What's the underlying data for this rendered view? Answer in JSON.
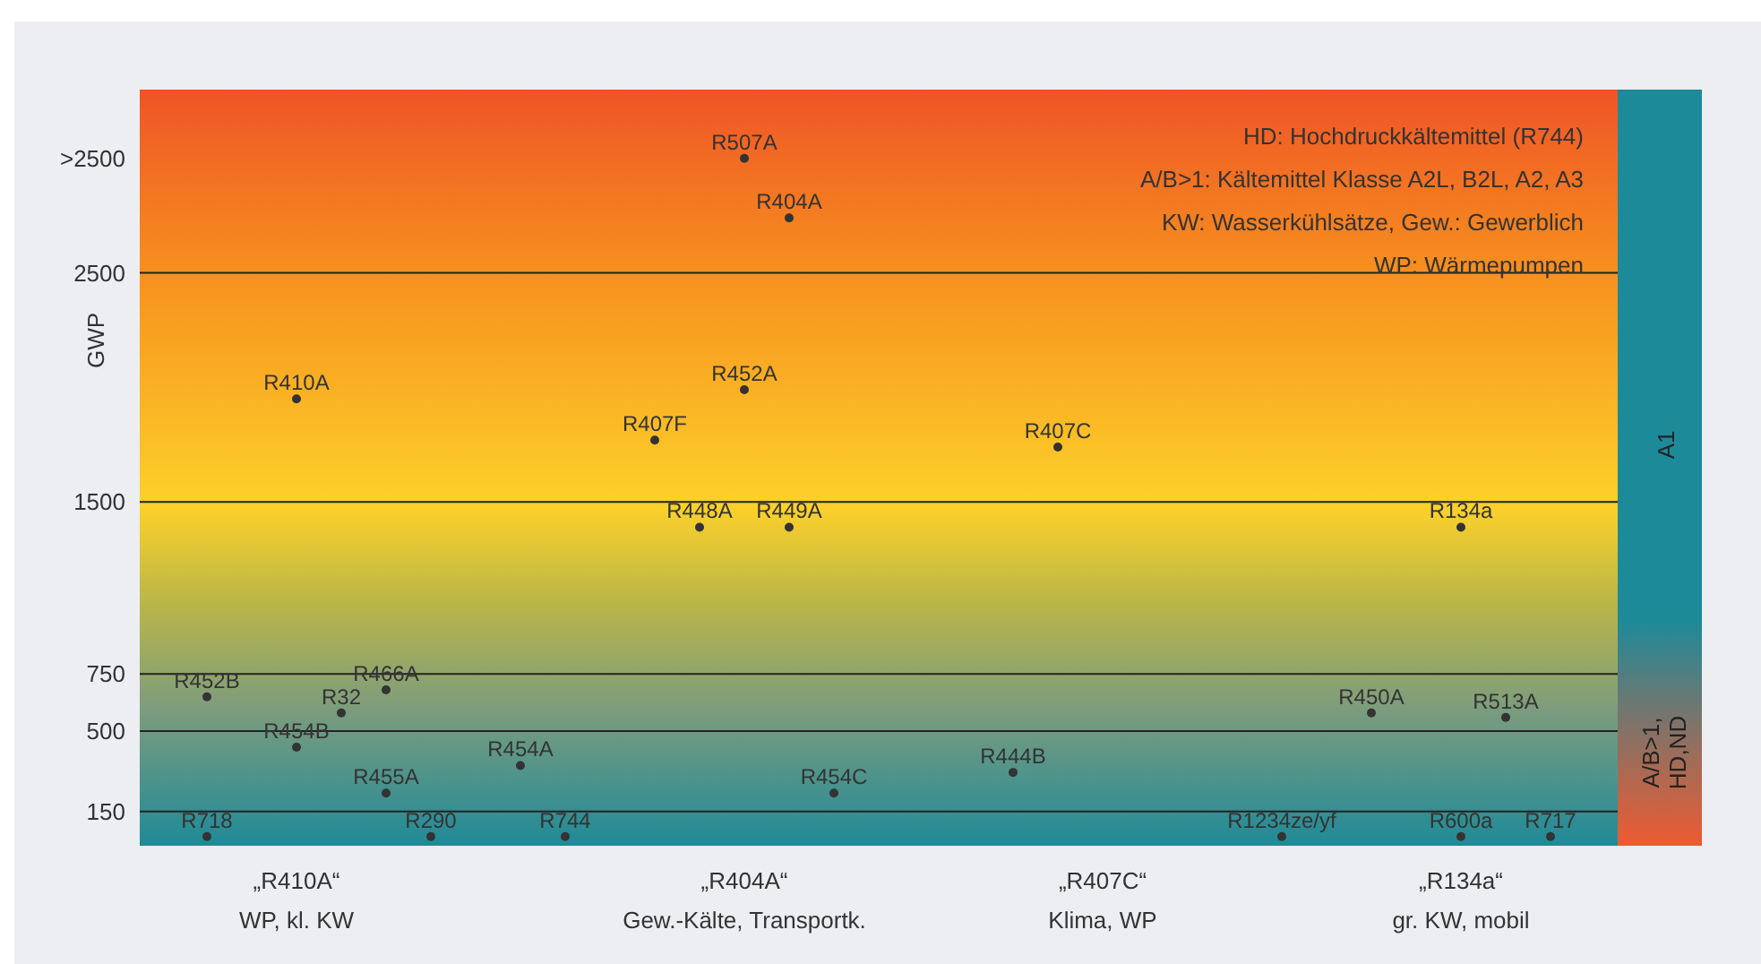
{
  "chart_data": {
    "type": "scatter",
    "ylabel": "GWP",
    "marker": "circle",
    "grid": "y",
    "categories": [
      null,
      null,
      null,
      "„R410A“\nWP, kl. KW",
      null,
      null,
      null,
      null,
      null,
      null,
      null,
      null,
      null,
      "„R404A“\nGew.-Kälte, Transportk.",
      null,
      null,
      null,
      null,
      null,
      null,
      null,
      "„R407C“\nKlima, WP",
      null,
      null,
      null,
      null,
      null,
      null,
      null,
      "„R134a“\ngr. KW, mobil",
      null,
      null,
      null
    ],
    "ylim": [
      0,
      3300
    ],
    "yticks": [
      150,
      500,
      750,
      1500,
      2500,
      {
        "value": 3000,
        "label": ">2500"
      }
    ],
    "annotations": [
      "HD: Hochdruckkältemittel (R744)",
      "A/B>1: Kältemittel Klasse A2L, B2L, A2, A3",
      "KW: Wasserkühlsätze, Gew.: Gewerblich",
      "WP: Wärmepumpen",
      "A1",
      "A/B>1,\nHD,ND"
    ],
    "series": [
      {
        "name": "R452B",
        "color": "#333333",
        "values": [
          null,
          650,
          null,
          null,
          null,
          null,
          null,
          null,
          null,
          null,
          null,
          null,
          null,
          null,
          null,
          null,
          null,
          null,
          null,
          null,
          null,
          null,
          null,
          null,
          null,
          null,
          null,
          null,
          null,
          null,
          null,
          null,
          null
        ]
      },
      {
        "name": "R718",
        "color": "#333333",
        "values": [
          null,
          40,
          null,
          null,
          null,
          null,
          null,
          null,
          null,
          null,
          null,
          null,
          null,
          null,
          null,
          null,
          null,
          null,
          null,
          null,
          null,
          null,
          null,
          null,
          null,
          null,
          null,
          null,
          null,
          null,
          null,
          null,
          null
        ]
      },
      {
        "name": "R454B",
        "color": "#333333",
        "values": [
          null,
          null,
          null,
          430,
          null,
          null,
          null,
          null,
          null,
          null,
          null,
          null,
          null,
          null,
          null,
          null,
          null,
          null,
          null,
          null,
          null,
          null,
          null,
          null,
          null,
          null,
          null,
          null,
          null,
          null,
          null,
          null,
          null
        ]
      },
      {
        "name": "R410A",
        "color": "#333333",
        "values": [
          null,
          null,
          null,
          1950,
          null,
          null,
          null,
          null,
          null,
          null,
          null,
          null,
          null,
          null,
          null,
          null,
          null,
          null,
          null,
          null,
          null,
          null,
          null,
          null,
          null,
          null,
          null,
          null,
          null,
          null,
          null,
          null,
          null
        ]
      },
      {
        "name": "R32",
        "color": "#333333",
        "values": [
          null,
          null,
          null,
          null,
          580,
          null,
          null,
          null,
          null,
          null,
          null,
          null,
          null,
          null,
          null,
          null,
          null,
          null,
          null,
          null,
          null,
          null,
          null,
          null,
          null,
          null,
          null,
          null,
          null,
          null,
          null,
          null,
          null
        ]
      },
      {
        "name": "R455A",
        "color": "#333333",
        "values": [
          null,
          null,
          null,
          null,
          null,
          230,
          null,
          null,
          null,
          null,
          null,
          null,
          null,
          null,
          null,
          null,
          null,
          null,
          null,
          null,
          null,
          null,
          null,
          null,
          null,
          null,
          null,
          null,
          null,
          null,
          null,
          null,
          null
        ]
      },
      {
        "name": "R466A",
        "color": "#333333",
        "values": [
          null,
          null,
          null,
          null,
          null,
          680,
          null,
          null,
          null,
          null,
          null,
          null,
          null,
          null,
          null,
          null,
          null,
          null,
          null,
          null,
          null,
          null,
          null,
          null,
          null,
          null,
          null,
          null,
          null,
          null,
          null,
          null,
          null
        ]
      },
      {
        "name": "R290",
        "color": "#333333",
        "values": [
          null,
          null,
          null,
          null,
          null,
          null,
          40,
          null,
          null,
          null,
          null,
          null,
          null,
          null,
          null,
          null,
          null,
          null,
          null,
          null,
          null,
          null,
          null,
          null,
          null,
          null,
          null,
          null,
          null,
          null,
          null,
          null,
          null
        ]
      },
      {
        "name": "R744",
        "color": "#333333",
        "values": [
          null,
          null,
          null,
          null,
          null,
          null,
          null,
          null,
          null,
          40,
          null,
          null,
          null,
          null,
          null,
          null,
          null,
          null,
          null,
          null,
          null,
          null,
          null,
          null,
          null,
          null,
          null,
          null,
          null,
          null,
          null,
          null,
          null
        ]
      },
      {
        "name": "R448A",
        "color": "#333333",
        "values": [
          null,
          null,
          null,
          null,
          null,
          null,
          null,
          null,
          null,
          null,
          null,
          null,
          1390,
          null,
          null,
          null,
          null,
          null,
          null,
          null,
          null,
          null,
          null,
          null,
          null,
          null,
          null,
          null,
          null,
          null,
          null,
          null,
          null
        ]
      },
      {
        "name": "R507A",
        "color": "#333333",
        "values": [
          null,
          null,
          null,
          null,
          null,
          null,
          null,
          null,
          null,
          null,
          null,
          null,
          null,
          3000,
          null,
          null,
          null,
          null,
          null,
          null,
          null,
          null,
          null,
          null,
          null,
          null,
          null,
          null,
          null,
          null,
          null,
          null,
          null
        ]
      },
      {
        "name": "R454A",
        "color": "#333333",
        "values": [
          null,
          null,
          null,
          null,
          null,
          null,
          null,
          null,
          350,
          null,
          null,
          null,
          null,
          null,
          null,
          null,
          null,
          null,
          null,
          null,
          null,
          null,
          null,
          null,
          null,
          null,
          null,
          null,
          null,
          null,
          null,
          null,
          null
        ]
      },
      {
        "name": "R407F",
        "color": "#333333",
        "values": [
          null,
          null,
          null,
          null,
          null,
          null,
          null,
          null,
          null,
          null,
          null,
          1770,
          null,
          null,
          null,
          null,
          null,
          null,
          null,
          null,
          null,
          null,
          null,
          null,
          null,
          null,
          null,
          null,
          null,
          null,
          null,
          null,
          null
        ]
      },
      {
        "name": "R449A",
        "color": "#333333",
        "values": [
          null,
          null,
          null,
          null,
          null,
          null,
          null,
          null,
          null,
          null,
          null,
          null,
          null,
          null,
          1390,
          null,
          null,
          null,
          null,
          null,
          null,
          null,
          null,
          null,
          null,
          null,
          null,
          null,
          null,
          null,
          null,
          null,
          null
        ]
      },
      {
        "name": "R404A",
        "color": "#333333",
        "values": [
          null,
          null,
          null,
          null,
          null,
          null,
          null,
          null,
          null,
          null,
          null,
          null,
          null,
          null,
          2740,
          null,
          null,
          null,
          null,
          null,
          null,
          null,
          null,
          null,
          null,
          null,
          null,
          null,
          null,
          null,
          null,
          null,
          null
        ]
      },
      {
        "name": "R454C",
        "color": "#333333",
        "values": [
          null,
          null,
          null,
          null,
          null,
          null,
          null,
          null,
          null,
          null,
          null,
          null,
          null,
          null,
          null,
          230,
          null,
          null,
          null,
          null,
          null,
          null,
          null,
          null,
          null,
          null,
          null,
          null,
          null,
          null,
          null,
          null,
          null
        ]
      },
      {
        "name": "R452A",
        "color": "#333333",
        "values": [
          null,
          null,
          null,
          null,
          null,
          null,
          null,
          null,
          null,
          null,
          null,
          null,
          null,
          1990,
          null,
          null,
          null,
          null,
          null,
          null,
          null,
          null,
          null,
          null,
          null,
          null,
          null,
          null,
          null,
          null,
          null,
          null,
          null
        ]
      },
      {
        "name": "R407C",
        "color": "#333333",
        "values": [
          null,
          null,
          null,
          null,
          null,
          null,
          null,
          null,
          null,
          null,
          null,
          null,
          null,
          null,
          null,
          null,
          null,
          null,
          null,
          null,
          1740,
          null,
          null,
          null,
          null,
          null,
          null,
          null,
          null,
          null,
          null,
          null,
          null
        ]
      },
      {
        "name": "R444B",
        "color": "#333333",
        "values": [
          null,
          null,
          null,
          null,
          null,
          null,
          null,
          null,
          null,
          null,
          null,
          null,
          null,
          null,
          null,
          null,
          null,
          null,
          null,
          320,
          null,
          null,
          null,
          null,
          null,
          null,
          null,
          null,
          null,
          null,
          null,
          null,
          null
        ]
      },
      {
        "name": "R1234ze/yf",
        "color": "#333333",
        "values": [
          null,
          null,
          null,
          null,
          null,
          null,
          null,
          null,
          null,
          null,
          null,
          null,
          null,
          null,
          null,
          null,
          null,
          null,
          null,
          null,
          null,
          null,
          null,
          null,
          null,
          40,
          null,
          null,
          null,
          null,
          null,
          null,
          null
        ]
      },
      {
        "name": "R450A",
        "color": "#333333",
        "values": [
          null,
          null,
          null,
          null,
          null,
          null,
          null,
          null,
          null,
          null,
          null,
          null,
          null,
          null,
          null,
          null,
          null,
          null,
          null,
          null,
          null,
          null,
          null,
          null,
          null,
          null,
          null,
          580,
          null,
          null,
          null,
          null,
          null
        ]
      },
      {
        "name": "R134a",
        "color": "#333333",
        "values": [
          null,
          null,
          null,
          null,
          null,
          null,
          null,
          null,
          null,
          null,
          null,
          null,
          null,
          null,
          null,
          null,
          null,
          null,
          null,
          null,
          null,
          null,
          null,
          null,
          null,
          null,
          null,
          null,
          null,
          1390,
          null,
          null,
          null
        ]
      },
      {
        "name": "R600a",
        "color": "#333333",
        "values": [
          null,
          null,
          null,
          null,
          null,
          null,
          null,
          null,
          null,
          null,
          null,
          null,
          null,
          null,
          null,
          null,
          null,
          null,
          null,
          null,
          null,
          null,
          null,
          null,
          null,
          null,
          null,
          null,
          null,
          40,
          null,
          null,
          null
        ]
      },
      {
        "name": "R513A",
        "color": "#333333",
        "values": [
          null,
          null,
          null,
          null,
          null,
          null,
          null,
          null,
          null,
          null,
          null,
          null,
          null,
          null,
          null,
          null,
          null,
          null,
          null,
          null,
          null,
          null,
          null,
          null,
          null,
          null,
          null,
          null,
          null,
          null,
          560,
          null,
          null
        ]
      },
      {
        "name": "R717",
        "color": "#333333",
        "values": [
          null,
          null,
          null,
          null,
          null,
          null,
          null,
          null,
          null,
          null,
          null,
          null,
          null,
          null,
          null,
          null,
          null,
          null,
          null,
          null,
          null,
          null,
          null,
          null,
          null,
          null,
          null,
          null,
          null,
          null,
          null,
          40,
          null
        ]
      }
    ]
  }
}
